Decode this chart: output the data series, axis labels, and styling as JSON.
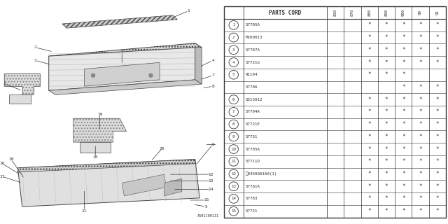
{
  "bg_color": "#ffffff",
  "table_header": "PARTS CORD",
  "col_labels": [
    "830",
    "870",
    "880",
    "890",
    "900",
    "90",
    "91"
  ],
  "rows": [
    {
      "ref": "1",
      "part": "57705A",
      "sub": false,
      "marks": [
        0,
        0,
        1,
        1,
        1,
        1,
        1
      ]
    },
    {
      "ref": "2",
      "part": "M260013",
      "sub": false,
      "marks": [
        0,
        0,
        1,
        1,
        1,
        1,
        1
      ]
    },
    {
      "ref": "3",
      "part": "57787A",
      "sub": false,
      "marks": [
        0,
        0,
        1,
        1,
        1,
        1,
        1
      ]
    },
    {
      "ref": "4",
      "part": "57721G",
      "sub": false,
      "marks": [
        0,
        0,
        1,
        1,
        1,
        1,
        1
      ]
    },
    {
      "ref": "5",
      "part": "91184",
      "sub": false,
      "marks": [
        0,
        0,
        1,
        1,
        1,
        0,
        0
      ]
    },
    {
      "ref": "",
      "part": "57786",
      "sub": true,
      "marks": [
        0,
        0,
        0,
        0,
        1,
        1,
        1
      ]
    },
    {
      "ref": "6",
      "part": "Q315012",
      "sub": false,
      "marks": [
        0,
        0,
        1,
        1,
        1,
        1,
        1
      ]
    },
    {
      "ref": "7",
      "part": "57704A",
      "sub": false,
      "marks": [
        0,
        0,
        1,
        1,
        1,
        1,
        1
      ]
    },
    {
      "ref": "8",
      "part": "57721E",
      "sub": false,
      "marks": [
        0,
        0,
        1,
        1,
        1,
        1,
        1
      ]
    },
    {
      "ref": "9",
      "part": "57751",
      "sub": false,
      "marks": [
        0,
        0,
        1,
        1,
        1,
        1,
        1
      ]
    },
    {
      "ref": "10",
      "part": "57705A",
      "sub": false,
      "marks": [
        0,
        0,
        1,
        1,
        1,
        1,
        1
      ]
    },
    {
      "ref": "11",
      "part": "57711D",
      "sub": false,
      "marks": [
        0,
        0,
        1,
        1,
        1,
        1,
        1
      ]
    },
    {
      "ref": "12",
      "part": "Ⓢ045006160(1)",
      "sub": false,
      "marks": [
        0,
        0,
        1,
        1,
        1,
        1,
        1
      ]
    },
    {
      "ref": "13",
      "part": "57761A",
      "sub": false,
      "marks": [
        0,
        0,
        1,
        1,
        1,
        1,
        1
      ]
    },
    {
      "ref": "14",
      "part": "57783",
      "sub": false,
      "marks": [
        0,
        0,
        1,
        1,
        1,
        1,
        1
      ]
    },
    {
      "ref": "15",
      "part": "57721",
      "sub": false,
      "marks": [
        0,
        0,
        1,
        1,
        1,
        1,
        1
      ]
    }
  ],
  "diagram_label": "A591C00131",
  "tc": "#333333",
  "lc": "#555555"
}
